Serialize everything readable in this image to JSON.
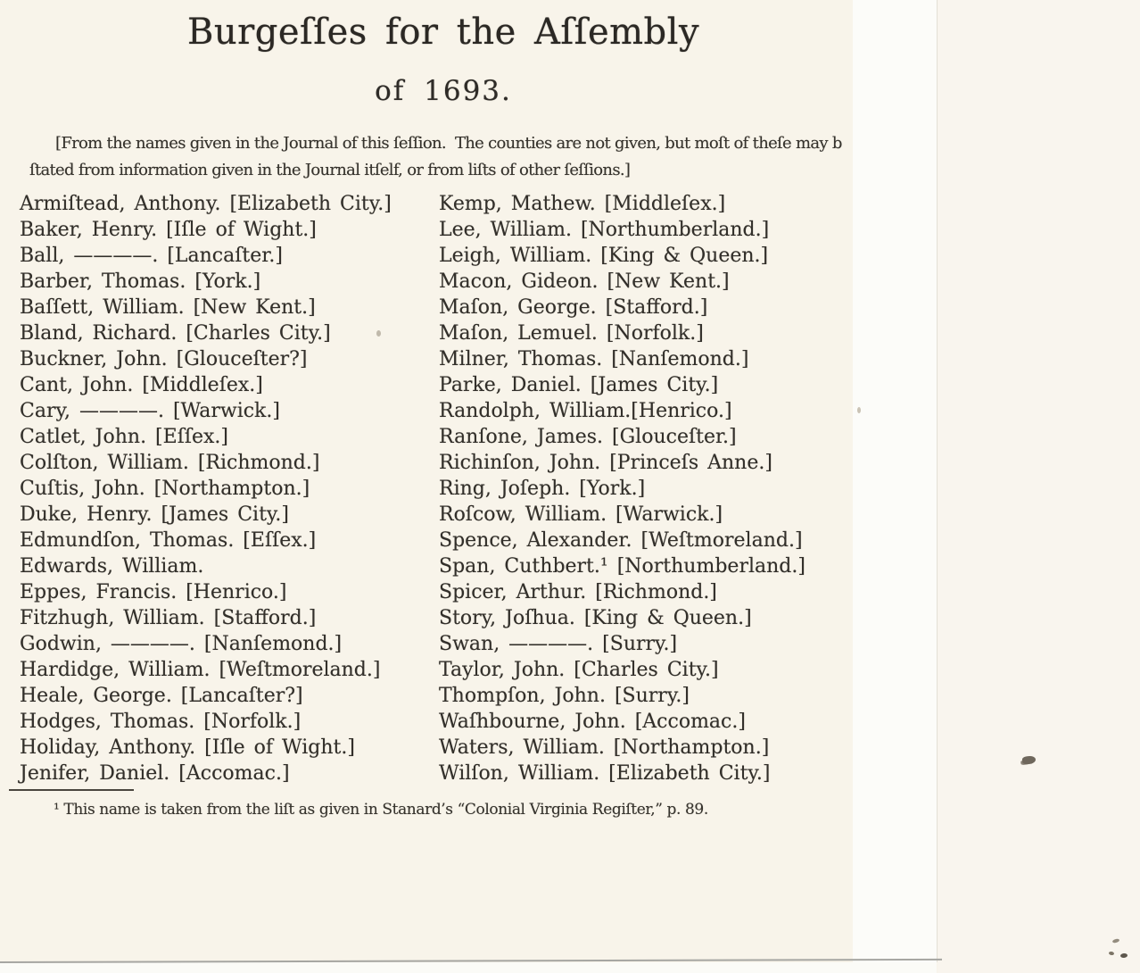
{
  "page": {
    "title": "Burgeſſes for the Aſſembly",
    "subtitle": "of 1693.",
    "note_line1": "[From the names given in the Journal of this ſeſſion.  The counties are not given, but moſt of theſe may b",
    "note_line2": "ſtated from information given in the Journal itſelf, or from liſts of other ſeſſions.]",
    "footnote": "¹ This name is taken from the liſt as given in Stanard’s “Colonial Virginia Regiſter,” p. 89."
  },
  "columns": {
    "left": [
      "Armiſtead, Anthony. [Elizabeth City.]",
      "Baker, Henry. [Iſle of Wight.]",
      "Ball, ————. [Lancaſter.]",
      "Barber, Thomas. [York.]",
      "Baſſett, William. [New Kent.]",
      "Bland, Richard. [Charles City.]",
      "Buckner, John. [Glouceſter?]",
      "Cant, John. [Middleſex.]",
      "Cary, ————. [Warwick.]",
      "Catlet, John. [Eſſex.]",
      "Colſton, William. [Richmond.]",
      "Cuſtis, John. [Northampton.]",
      "Duke, Henry. [James City.]",
      "Edmundſon, Thomas. [Eſſex.]",
      "Edwards, William.",
      "Eppes, Francis. [Henrico.]",
      "Fitzhugh, William. [Stafford.]",
      "Godwin, ————. [Nanſemond.]",
      "Hardidge, William. [Weſtmoreland.]",
      "Heale, George. [Lancaſter?]",
      "Hodges, Thomas. [Norfolk.]",
      "Holiday, Anthony. [Iſle of Wight.]",
      "Jenifer, Daniel. [Accomac.]"
    ],
    "right": [
      "Kemp, Mathew. [Middleſex.]",
      "Lee, William. [Northumberland.]",
      "Leigh, William. [King & Queen.]",
      "Macon, Gideon. [New Kent.]",
      "Maſon, George. [Stafford.]",
      "Maſon, Lemuel. [Norfolk.]",
      "Milner, Thomas. [Nanſemond.]",
      "Parke, Daniel. [James City.]",
      "Randolph, William.[Henrico.]",
      "Ranſone, James. [Glouceſter.]",
      "Richinſon, John. [Princeſs Anne.]",
      "Ring, Joſeph. [York.]",
      "Roſcow, William. [Warwick.]",
      "Spence, Alexander. [Weſtmoreland.]",
      "Span, Cuthbert.¹ [Northumberland.]",
      "Spicer, Arthur. [Richmond.]",
      "Story, Joſhua. [King & Queen.]",
      "Swan, ————. [Surry.]",
      "Taylor, John. [Charles City.]",
      "Thompſon, John. [Surry.]",
      "Waſhbourne, John. [Accomac.]",
      "Waters, William. [Northampton.]",
      "Wilſon, William. [Elizabeth City.]"
    ]
  },
  "colors": {
    "paper": "#f8f4ea",
    "paper_right": "#f9f5ee",
    "edge_band": "#fcfcf9",
    "ink": "#322f2a",
    "edge_line": "#a6a6a2"
  }
}
